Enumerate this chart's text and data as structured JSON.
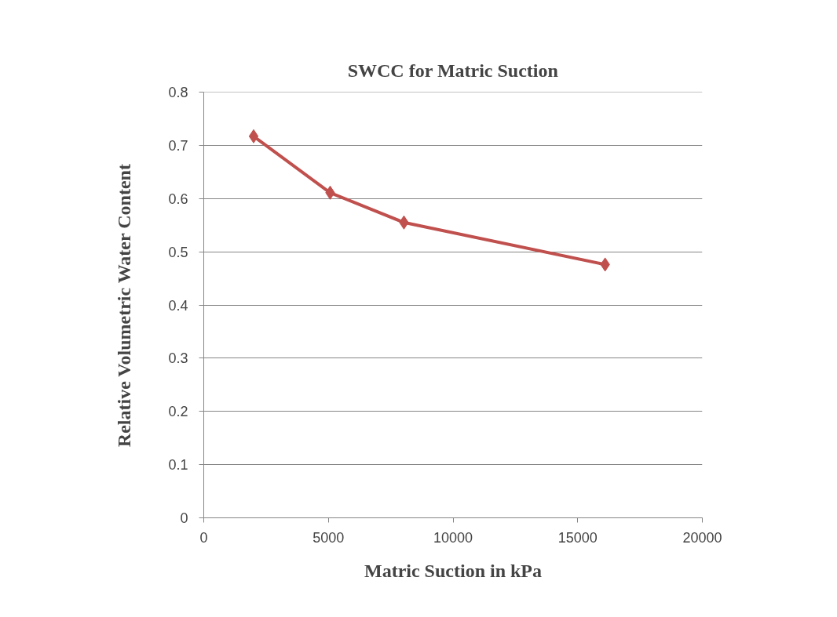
{
  "chart_data": {
    "type": "line",
    "title": "SWCC for Matric Suction",
    "xlabel": "Matric Suction in kPa",
    "ylabel": "Relative Volumetric Water Content",
    "x": [
      2000,
      5070,
      8030,
      16100
    ],
    "series": [
      {
        "color": "#c0504d",
        "values": [
          0.717,
          0.611,
          0.555,
          0.476
        ]
      }
    ],
    "xlim": [
      0,
      20000
    ],
    "xticks": [
      0,
      5000,
      10000,
      15000,
      20000
    ],
    "ylim": [
      0,
      0.8
    ],
    "yticks": [
      0,
      0.1,
      0.2,
      0.3,
      0.4,
      0.5,
      0.6,
      0.7,
      0.8
    ],
    "grid": "y",
    "marker": "diamond",
    "line_style": "solid"
  }
}
